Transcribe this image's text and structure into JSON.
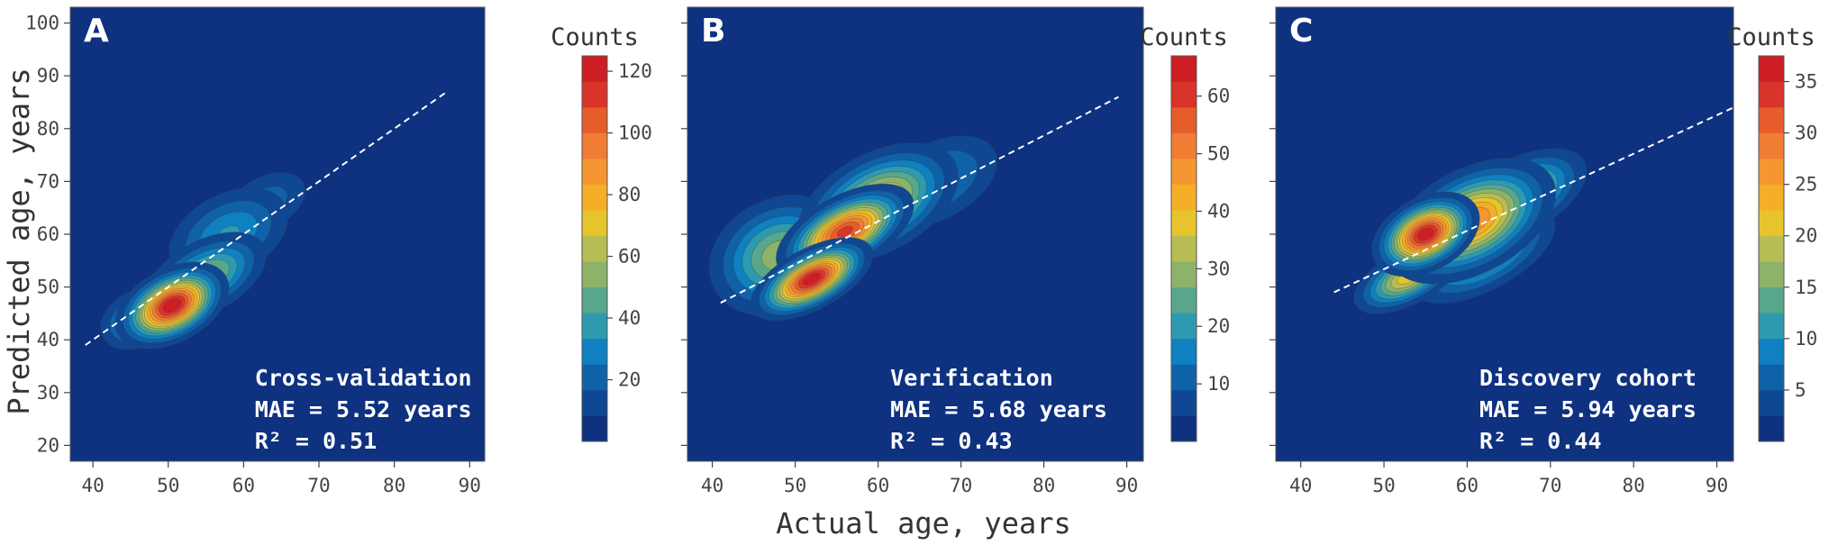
{
  "figure": {
    "ylabel": "Predicted age, years",
    "xlabel": "Actual age, years",
    "colorbar_title": "Counts",
    "background_color": "#0e3180",
    "colormap": [
      "#0e3180",
      "#0f4793",
      "#0f62a8",
      "#0f80c0",
      "#2e9ab0",
      "#58a78a",
      "#8db36a",
      "#b7bd55",
      "#e8c42c",
      "#f4ae28",
      "#f59633",
      "#f07d33",
      "#e65c2b",
      "#d9342a",
      "#cc1e24"
    ]
  },
  "chart_data": [
    {
      "type": "heatmap",
      "panel_label": "A",
      "annotation": [
        "Cross-validation",
        "MAE = 5.52 years",
        "R² = 0.51"
      ],
      "xlim": [
        37,
        92
      ],
      "ylim": [
        17,
        103
      ],
      "xticks": [
        40,
        50,
        60,
        70,
        80,
        90
      ],
      "yticks": [
        20,
        30,
        40,
        50,
        60,
        70,
        80,
        90,
        100
      ],
      "fit_line": {
        "x": [
          39,
          87
        ],
        "y": [
          39,
          87
        ]
      },
      "colorbar": {
        "min": 0,
        "max": 125,
        "ticks": [
          20,
          40,
          60,
          80,
          100,
          120
        ]
      },
      "density_peaks": [
        {
          "x": 50.5,
          "y": 46.5,
          "count": 125,
          "sx": 3.5,
          "sy": 3.0
        },
        {
          "x": 55.0,
          "y": 52.0,
          "count": 55,
          "sx": 4.5,
          "sy": 3.5
        },
        {
          "x": 58.0,
          "y": 60.0,
          "count": 35,
          "sx": 5.0,
          "sy": 4.5
        },
        {
          "x": 63.0,
          "y": 66.0,
          "count": 22,
          "sx": 4.0,
          "sy": 3.5
        },
        {
          "x": 46.0,
          "y": 44.0,
          "count": 40,
          "sx": 3.0,
          "sy": 3.0
        }
      ]
    },
    {
      "type": "heatmap",
      "panel_label": "B",
      "annotation": [
        "Verification",
        "MAE = 5.68 years",
        "R² = 0.43"
      ],
      "xlim": [
        37,
        92
      ],
      "ylim": [
        17,
        103
      ],
      "xticks": [
        40,
        50,
        60,
        70,
        80,
        90
      ],
      "yticks": [
        20,
        30,
        40,
        50,
        60,
        70,
        80,
        90,
        100
      ],
      "fit_line": {
        "x": [
          41,
          89
        ],
        "y": [
          47,
          86
        ]
      },
      "colorbar": {
        "min": 0,
        "max": 67,
        "ticks": [
          10,
          20,
          30,
          40,
          50,
          60
        ]
      },
      "density_peaks": [
        {
          "x": 52.0,
          "y": 51.5,
          "count": 66,
          "sx": 3.5,
          "sy": 2.5
        },
        {
          "x": 56.0,
          "y": 60.5,
          "count": 60,
          "sx": 4.0,
          "sy": 3.0
        },
        {
          "x": 60.0,
          "y": 66.0,
          "count": 40,
          "sx": 5.0,
          "sy": 4.5
        },
        {
          "x": 48.0,
          "y": 56.0,
          "count": 30,
          "sx": 4.5,
          "sy": 5.5
        },
        {
          "x": 67.0,
          "y": 70.0,
          "count": 16,
          "sx": 5.0,
          "sy": 4.5
        }
      ]
    },
    {
      "type": "heatmap",
      "panel_label": "C",
      "annotation": [
        "Discovery cohort",
        "MAE = 5.94 years",
        "R² = 0.44"
      ],
      "xlim": [
        37,
        92
      ],
      "ylim": [
        17,
        103
      ],
      "xticks": [
        40,
        50,
        60,
        70,
        80,
        90
      ],
      "yticks": [
        20,
        30,
        40,
        50,
        60,
        70,
        80,
        90,
        100
      ],
      "fit_line": {
        "x": [
          44,
          92
        ],
        "y": [
          49,
          84
        ]
      },
      "colorbar": {
        "min": 0,
        "max": 37.5,
        "ticks": [
          5,
          10,
          15,
          20,
          25,
          30,
          35
        ]
      },
      "density_peaks": [
        {
          "x": 55.0,
          "y": 60.0,
          "count": 37,
          "sx": 3.0,
          "sy": 3.0
        },
        {
          "x": 60.5,
          "y": 62.5,
          "count": 28,
          "sx": 5.0,
          "sy": 4.5
        },
        {
          "x": 53.0,
          "y": 52.0,
          "count": 22,
          "sx": 3.5,
          "sy": 2.5
        },
        {
          "x": 66.0,
          "y": 67.0,
          "count": 20,
          "sx": 4.5,
          "sy": 3.5
        },
        {
          "x": 62.0,
          "y": 56.0,
          "count": 15,
          "sx": 5.0,
          "sy": 3.5
        }
      ]
    }
  ]
}
